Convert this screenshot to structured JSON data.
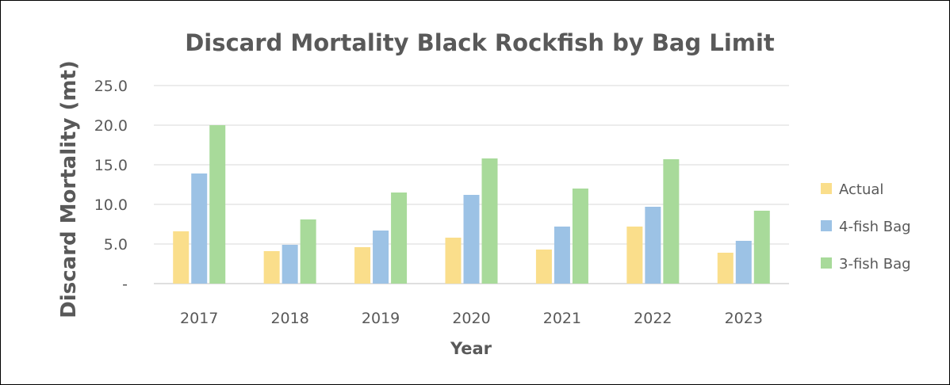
{
  "chart_data": {
    "type": "bar",
    "title": "Discard Mortality Black Rockfish by Bag Limit",
    "xlabel": "Year",
    "ylabel": "Discard Mortality (mt)",
    "categories": [
      "2017",
      "2018",
      "2019",
      "2020",
      "2021",
      "2022",
      "2023"
    ],
    "series": [
      {
        "name": "Actual",
        "color": "#FADE8B",
        "values": [
          6.6,
          4.1,
          4.6,
          5.8,
          4.3,
          7.2,
          3.9
        ]
      },
      {
        "name": "4-fish Bag",
        "color": "#9CC2E5",
        "values": [
          13.9,
          4.9,
          6.7,
          11.2,
          7.2,
          9.7,
          5.4
        ]
      },
      {
        "name": "3-fish Bag",
        "color": "#A8DA9A",
        "values": [
          20.0,
          8.1,
          11.5,
          15.8,
          12.0,
          15.7,
          9.2
        ]
      }
    ],
    "ylim": [
      0,
      25
    ],
    "yticks": [
      0,
      5,
      10,
      15,
      20,
      25
    ],
    "ytick_labels": [
      "-",
      "5.0",
      "10.0",
      "15.0",
      "20.0",
      "25.0"
    ],
    "grid": true,
    "legend_position": "right"
  }
}
